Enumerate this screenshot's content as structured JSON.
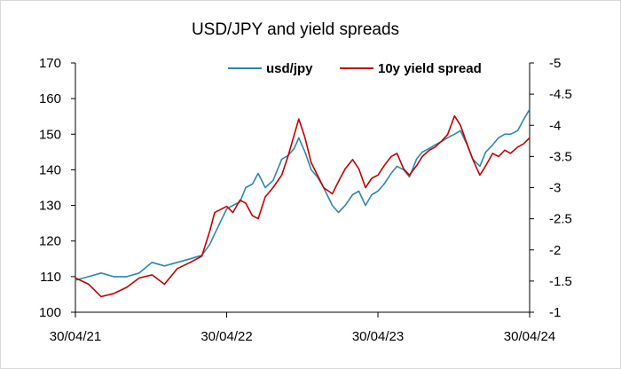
{
  "chart_data": {
    "type": "line",
    "title": "USD/JPY and yield spreads",
    "x_tick_labels": [
      "30/04/21",
      "30/04/22",
      "30/04/23",
      "30/04/24"
    ],
    "x_ticks": [
      "2021-04-30",
      "2022-04-30",
      "2023-04-30",
      "2024-04-30"
    ],
    "x_range": [
      "2021-04-30",
      "2024-04-30"
    ],
    "y_left": {
      "min": 100,
      "max": 170,
      "step": 10,
      "ticks": [
        "100",
        "110",
        "120",
        "130",
        "140",
        "150",
        "160",
        "170"
      ]
    },
    "y_right": {
      "min": -1,
      "max": -5,
      "inverted": true,
      "step": -0.5,
      "ticks": [
        "-1",
        "-1.5",
        "-2",
        "-2.5",
        "-3",
        "-3.5",
        "-4",
        "-4.5",
        "-5"
      ]
    },
    "grid": false,
    "legend_position": "top",
    "series": [
      {
        "name": "usd/jpy",
        "axis": "left",
        "color": "#2e86ab",
        "x": [
          "2021-04-30",
          "2021-06-01",
          "2021-07-01",
          "2021-08-01",
          "2021-09-01",
          "2021-10-01",
          "2021-11-01",
          "2021-12-01",
          "2022-01-01",
          "2022-02-01",
          "2022-03-01",
          "2022-03-20",
          "2022-04-01",
          "2022-04-30",
          "2022-05-15",
          "2022-06-01",
          "2022-06-15",
          "2022-07-01",
          "2022-07-15",
          "2022-08-01",
          "2022-08-20",
          "2022-09-10",
          "2022-09-25",
          "2022-10-10",
          "2022-10-21",
          "2022-11-05",
          "2022-11-20",
          "2022-12-05",
          "2022-12-20",
          "2023-01-10",
          "2023-01-25",
          "2023-02-10",
          "2023-02-28",
          "2023-03-15",
          "2023-03-31",
          "2023-04-15",
          "2023-04-30",
          "2023-05-15",
          "2023-06-01",
          "2023-06-15",
          "2023-07-01",
          "2023-07-15",
          "2023-08-01",
          "2023-08-15",
          "2023-09-01",
          "2023-09-15",
          "2023-10-01",
          "2023-10-15",
          "2023-11-01",
          "2023-11-15",
          "2023-12-01",
          "2023-12-15",
          "2024-01-01",
          "2024-01-15",
          "2024-02-01",
          "2024-02-15",
          "2024-03-01",
          "2024-03-15",
          "2024-04-01",
          "2024-04-15",
          "2024-04-30"
        ],
        "y": [
          109,
          110,
          111,
          110,
          110,
          111,
          114,
          113,
          114,
          115,
          116,
          119,
          122,
          129,
          130,
          131,
          135,
          136,
          139,
          135,
          137,
          143,
          144,
          146,
          149,
          145,
          140,
          138,
          135,
          130,
          128,
          130,
          133,
          134,
          130,
          133,
          134,
          136,
          139,
          141,
          140,
          138,
          143,
          145,
          146,
          147,
          148,
          149,
          150,
          151,
          147,
          143,
          141,
          145,
          147,
          149,
          150,
          150,
          151,
          154,
          157
        ]
      },
      {
        "name": "10y yield spread",
        "axis": "right",
        "color": "#c00000",
        "x": [
          "2021-04-30",
          "2021-06-01",
          "2021-07-01",
          "2021-08-01",
          "2021-09-01",
          "2021-10-01",
          "2021-11-01",
          "2021-12-01",
          "2022-01-01",
          "2022-02-01",
          "2022-03-01",
          "2022-03-20",
          "2022-04-01",
          "2022-04-30",
          "2022-05-15",
          "2022-06-01",
          "2022-06-15",
          "2022-07-01",
          "2022-07-15",
          "2022-08-01",
          "2022-08-20",
          "2022-09-10",
          "2022-09-25",
          "2022-10-10",
          "2022-10-21",
          "2022-11-05",
          "2022-11-20",
          "2022-12-05",
          "2022-12-20",
          "2023-01-10",
          "2023-01-25",
          "2023-02-10",
          "2023-02-28",
          "2023-03-15",
          "2023-03-31",
          "2023-04-15",
          "2023-04-30",
          "2023-05-15",
          "2023-06-01",
          "2023-06-15",
          "2023-07-01",
          "2023-07-15",
          "2023-08-01",
          "2023-08-15",
          "2023-09-01",
          "2023-09-15",
          "2023-10-01",
          "2023-10-15",
          "2023-11-01",
          "2023-11-15",
          "2023-12-01",
          "2023-12-15",
          "2024-01-01",
          "2024-01-15",
          "2024-02-01",
          "2024-02-15",
          "2024-03-01",
          "2024-03-15",
          "2024-04-01",
          "2024-04-15",
          "2024-04-30"
        ],
        "y": [
          -1.55,
          -1.45,
          -1.25,
          -1.3,
          -1.4,
          -1.55,
          -1.6,
          -1.45,
          -1.7,
          -1.8,
          -1.9,
          -2.3,
          -2.6,
          -2.7,
          -2.6,
          -2.8,
          -2.75,
          -2.55,
          -2.5,
          -2.85,
          -3.0,
          -3.2,
          -3.5,
          -3.85,
          -4.1,
          -3.8,
          -3.4,
          -3.2,
          -3.0,
          -2.9,
          -3.1,
          -3.3,
          -3.45,
          -3.3,
          -3.0,
          -3.15,
          -3.2,
          -3.35,
          -3.5,
          -3.55,
          -3.3,
          -3.2,
          -3.35,
          -3.5,
          -3.6,
          -3.65,
          -3.75,
          -3.85,
          -4.15,
          -4.0,
          -3.7,
          -3.45,
          -3.2,
          -3.35,
          -3.55,
          -3.5,
          -3.6,
          -3.55,
          -3.65,
          -3.7,
          -3.8
        ]
      }
    ]
  }
}
